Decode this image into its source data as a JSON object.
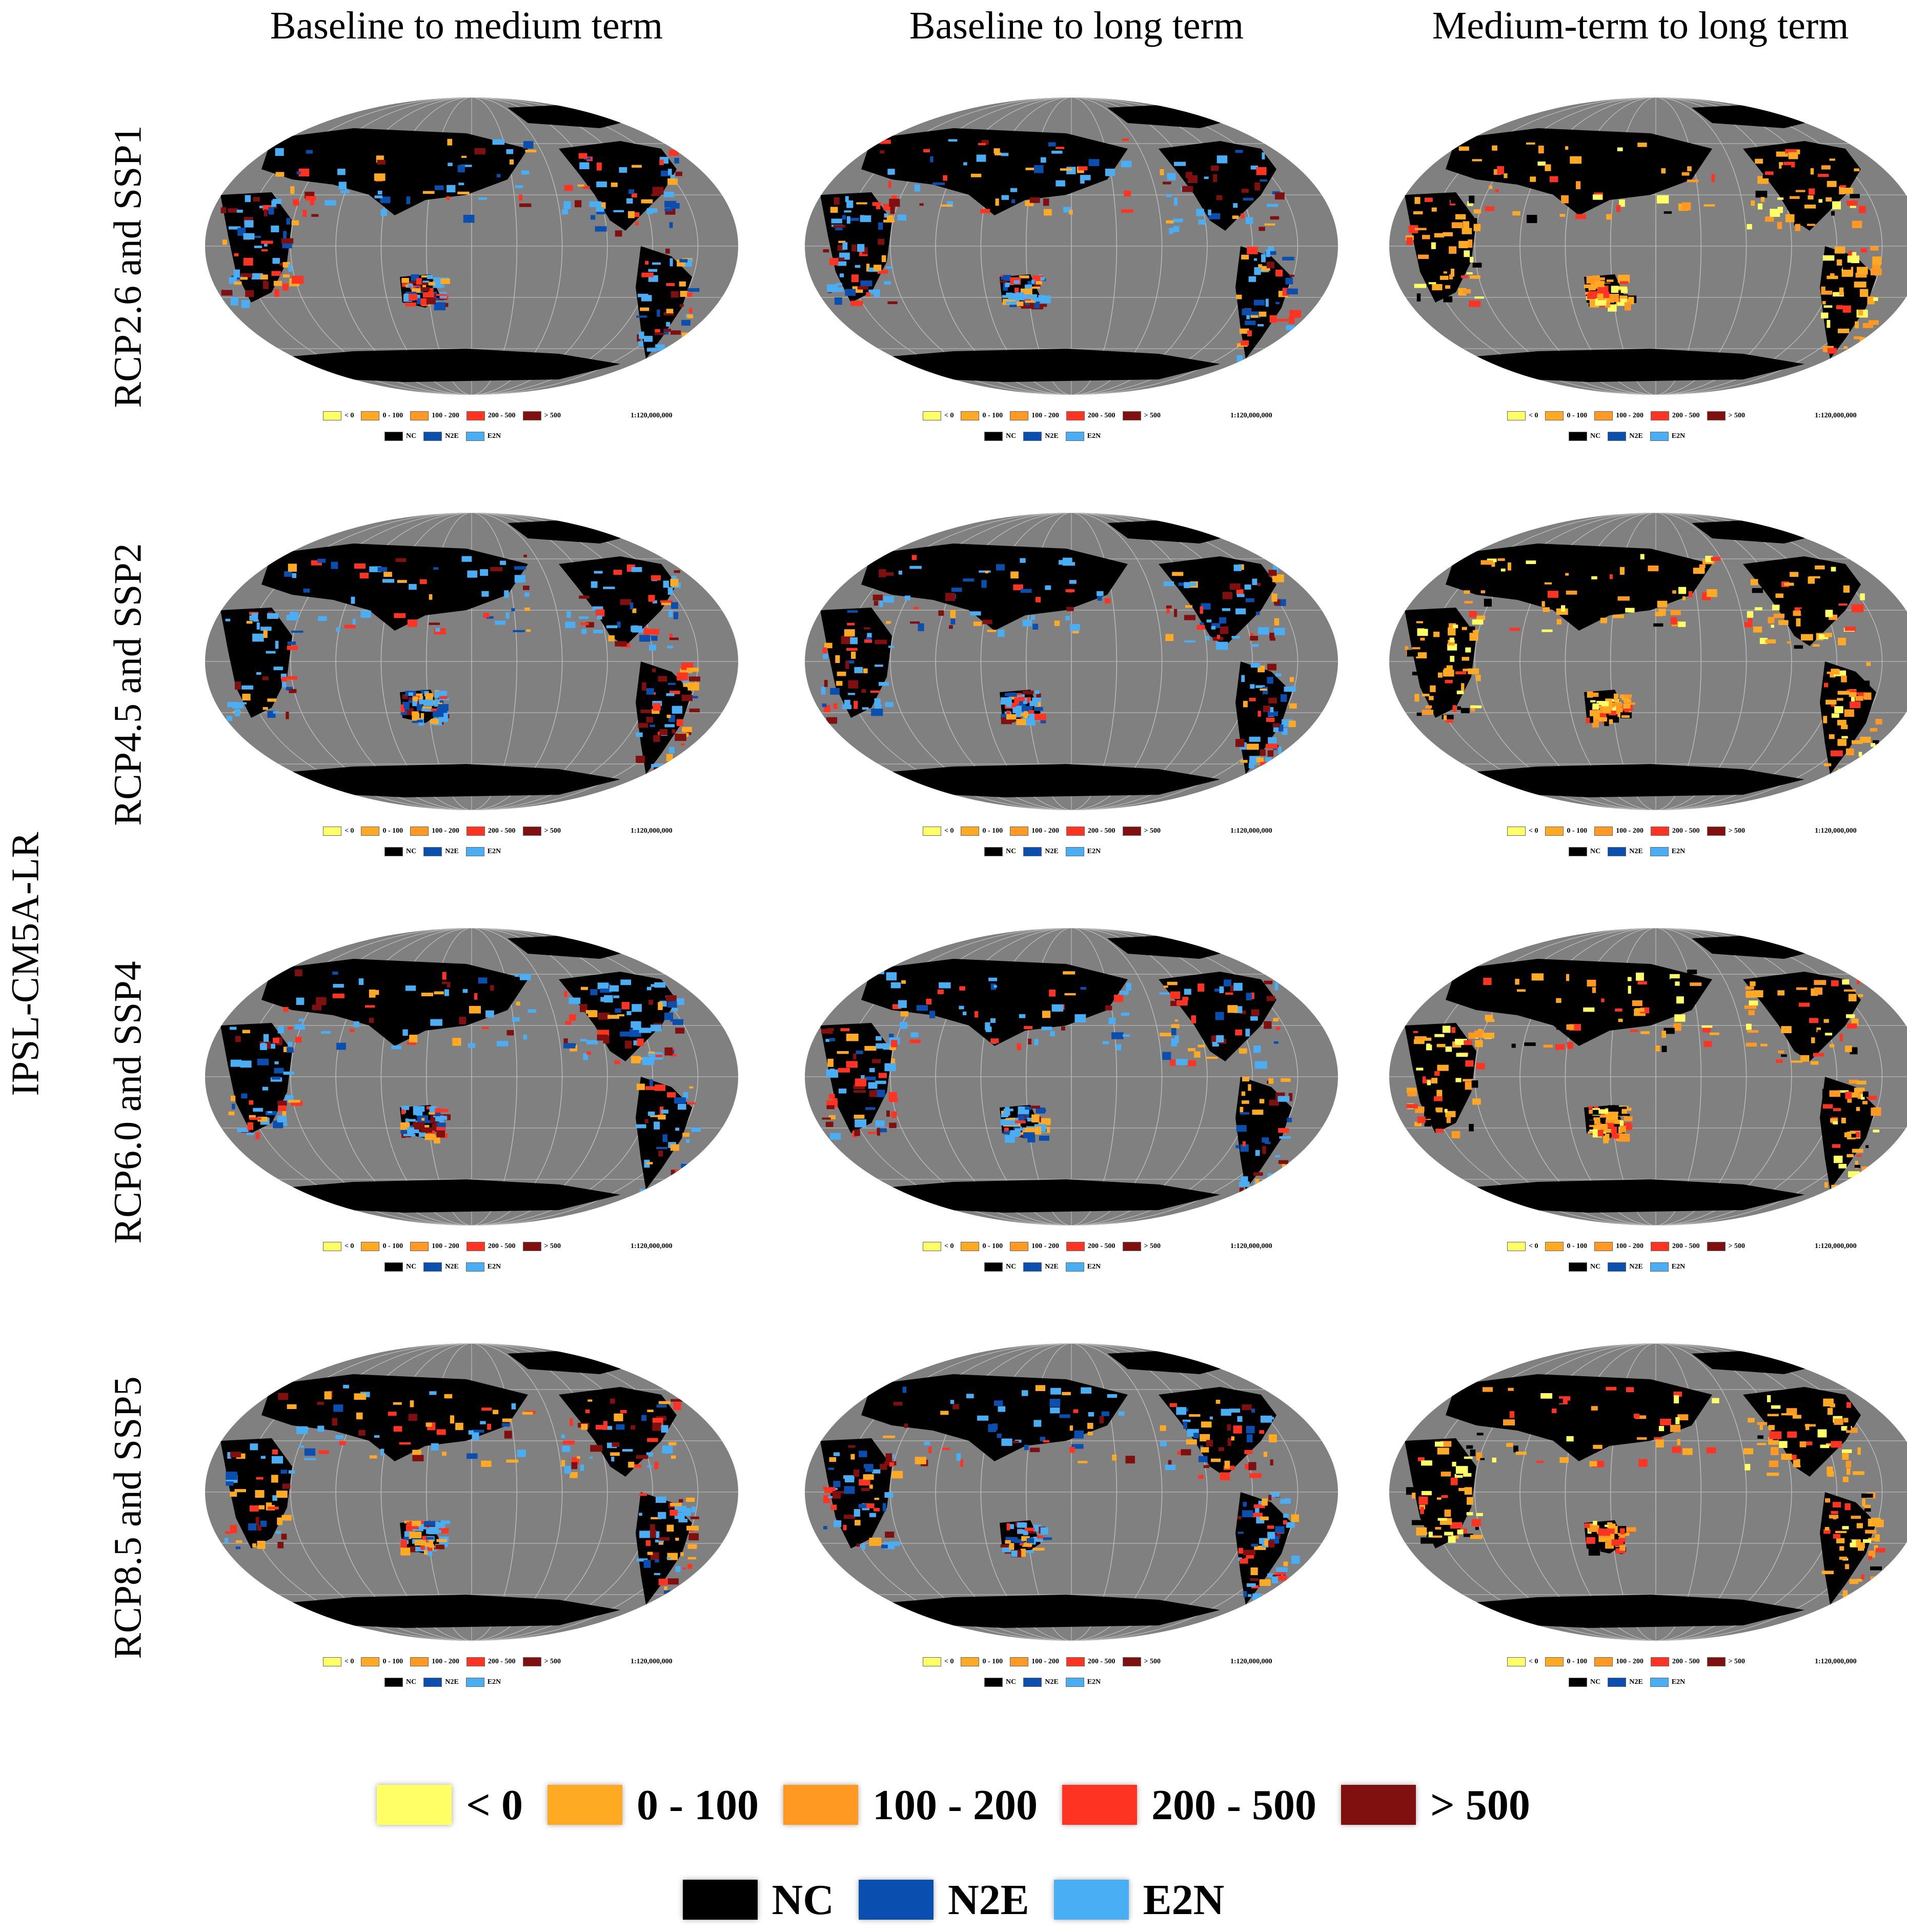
{
  "column_headers": [
    "Baseline to medium term",
    "Baseline to long term",
    "Medium-term to long term"
  ],
  "model_label": "IPSL-CM5A-LR",
  "rows": [
    {
      "label": "RCP2.6 and SSP1"
    },
    {
      "label": "RCP4.5 and SSP2"
    },
    {
      "label": "RCP6.0 and SSP4"
    },
    {
      "label": "RCP8.5 and SSP5"
    }
  ],
  "panel_scale": "1:120,000,000",
  "legend": {
    "change_classes": [
      {
        "label": "< 0",
        "color": "#ffff66"
      },
      {
        "label": "0 - 100",
        "color": "#ffaa22"
      },
      {
        "label": "100 - 200",
        "color": "#ff9922"
      },
      {
        "label": "200 - 500",
        "color": "#ff3322"
      },
      {
        "label": "> 500",
        "color": "#801010"
      }
    ],
    "transition_classes": [
      {
        "label": "NC",
        "color": "#000000"
      },
      {
        "label": "N2E",
        "color": "#0a4fb0"
      },
      {
        "label": "E2N",
        "color": "#4aaef5"
      }
    ]
  },
  "colors": {
    "ocean": "#808080",
    "land_background": "#000000",
    "graticule": "#b8b8b8"
  }
}
